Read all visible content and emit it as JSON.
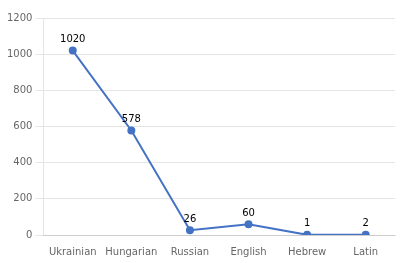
{
  "chart_data": {
    "type": "line",
    "categories": [
      "Ukrainian",
      "Hungarian",
      "Russian",
      "English",
      "Hebrew",
      "Latin"
    ],
    "values": [
      1020,
      578,
      26,
      60,
      1,
      2
    ],
    "color": "#4472C4",
    "marker": "circle",
    "ylim": [
      0,
      1200
    ],
    "yticks": [
      0,
      200,
      400,
      600,
      800,
      1000,
      1200
    ],
    "grid": true,
    "data_labels": true
  }
}
